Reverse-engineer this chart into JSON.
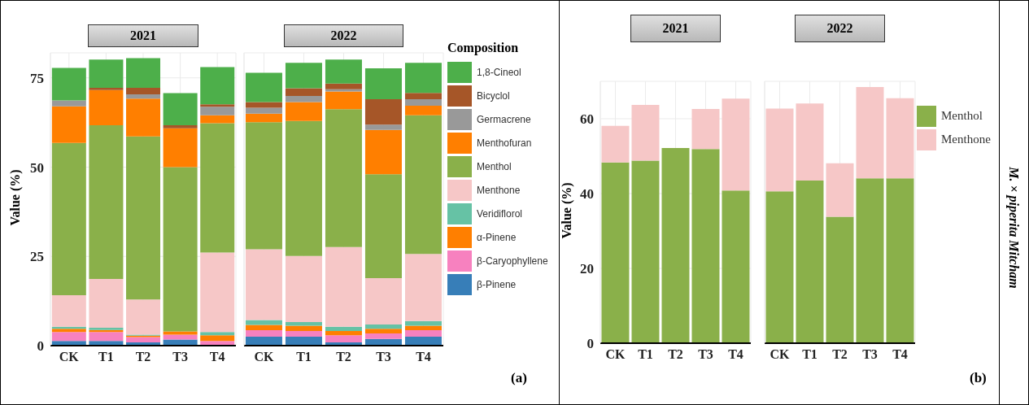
{
  "chart_data": [
    {
      "type": "bar",
      "title": "2021",
      "ylabel": "Value (%)",
      "categories": [
        "CK",
        "T1",
        "T2",
        "T3",
        "T4"
      ],
      "stacked": true,
      "ylim": [
        0,
        82
      ],
      "yticks": [
        0,
        25,
        50,
        75
      ],
      "grid": true,
      "series": [
        {
          "color": "#377eb8",
          "values": [
            1.3,
            1.3,
            0.9,
            1.7,
            null
          ]
        },
        {
          "color": "#f781bf",
          "values": [
            2.5,
            2.5,
            1.5,
            1.4,
            1.3
          ]
        },
        {
          "color": "#ff7f00",
          "values": [
            0.9,
            0.6,
            0.4,
            0.9,
            1.6
          ]
        },
        {
          "color": "#66c2a5",
          "values": [
            0.6,
            0.6,
            0.3,
            null,
            0.9
          ]
        },
        {
          "color": "#f6c7c7",
          "values": [
            8.8,
            13.7,
            9.8,
            null,
            22.3
          ]
        },
        {
          "color": "#8ab04a",
          "values": [
            42.7,
            43.0,
            45.7,
            46.0,
            36.2
          ]
        },
        {
          "color": "#ff7f00",
          "values": [
            10.2,
            9.9,
            10.6,
            10.9,
            2.2
          ]
        },
        {
          "color": "#999999",
          "values": [
            1.7,
            0,
            1.2,
            0,
            2.4
          ]
        },
        {
          "color": "#a65628",
          "values": [
            0,
            0.6,
            1.8,
            0.8,
            0.7
          ]
        },
        {
          "color": "#4daf4a",
          "values": [
            9.1,
            7.9,
            8.3,
            9.0,
            10.4
          ]
        }
      ]
    },
    {
      "type": "bar",
      "title": "2022",
      "legend_title": "Composition",
      "categories": [
        "CK",
        "T1",
        "T2",
        "T3",
        "T4"
      ],
      "stacked": true,
      "ylim": [
        0,
        82
      ],
      "yticks": [
        0,
        25,
        50,
        75
      ],
      "tick_labels": "x",
      "grid": true,
      "legend": "right",
      "annotations": [
        "(a)"
      ],
      "series": [
        {
          "name": "β-Pinene",
          "color": "#377eb8",
          "values": [
            2.5,
            2.5,
            0.9,
            1.9,
            2.5
          ]
        },
        {
          "name": "β-Caryophyllene",
          "color": "#f781bf",
          "values": [
            1.8,
            1.6,
            2.0,
            1.5,
            1.8
          ]
        },
        {
          "name": "α-Pinene",
          "color": "#ff7f00",
          "values": [
            1.5,
            1.5,
            1.2,
            1.3,
            1.3
          ]
        },
        {
          "name": "Veridiflorol",
          "color": "#66c2a5",
          "values": [
            1.4,
            1.0,
            1.2,
            1.2,
            1.3
          ]
        },
        {
          "name": "Menthone",
          "color": "#f6c7c7",
          "values": [
            19.8,
            18.5,
            22.3,
            13.0,
            18.8
          ]
        },
        {
          "name": "Menthol",
          "color": "#8ab04a",
          "values": [
            35.6,
            37.8,
            38.6,
            29.1,
            38.8
          ]
        },
        {
          "name": "Menthofuran",
          "color": "#ff7f00",
          "values": [
            2.4,
            5.3,
            5.0,
            12.4,
            2.7
          ]
        },
        {
          "name": "Germacrene",
          "color": "#999999",
          "values": [
            1.6,
            1.7,
            0.6,
            1.5,
            1.8
          ]
        },
        {
          "name": "Bicyclol",
          "color": "#a65628",
          "values": [
            1.6,
            2.2,
            1.6,
            7.1,
            1.8
          ]
        },
        {
          "name": "1,8-Cineol",
          "color": "#4daf4a",
          "values": [
            8.2,
            7.1,
            6.7,
            8.7,
            8.4
          ]
        }
      ]
    },
    {
      "type": "bar",
      "title": "2021",
      "ylabel": "Value (%)",
      "categories": [
        "CK",
        "T1",
        "T2",
        "T3",
        "T4"
      ],
      "stacked": true,
      "ylim": [
        0,
        70
      ],
      "yticks": [
        0,
        20,
        40,
        60
      ],
      "grid": true,
      "series": [
        {
          "color": "#8ab04a",
          "values": [
            48.3,
            48.8,
            52.2,
            51.9,
            40.8
          ]
        },
        {
          "color": "#f6c7c7",
          "values": [
            9.8,
            14.9,
            0,
            10.7,
            24.6
          ]
        }
      ]
    },
    {
      "type": "bar",
      "title": "2022",
      "y2label": "M. × piperita Mitcham",
      "categories": [
        "CK",
        "T1",
        "T2",
        "T3",
        "T4"
      ],
      "stacked": true,
      "ylim": [
        0,
        70
      ],
      "yticks": [
        0,
        20,
        40,
        60
      ],
      "tick_labels": "x",
      "grid": true,
      "legend": "right",
      "annotations": [
        "(b)"
      ],
      "series": [
        {
          "name": "Menthol",
          "color": "#8ab04a",
          "values": [
            40.6,
            43.5,
            33.8,
            44.1,
            44.1
          ]
        },
        {
          "name": "Menthone",
          "color": "#f6c7c7",
          "values": [
            22.1,
            20.6,
            14.3,
            24.4,
            21.4
          ]
        }
      ]
    }
  ]
}
